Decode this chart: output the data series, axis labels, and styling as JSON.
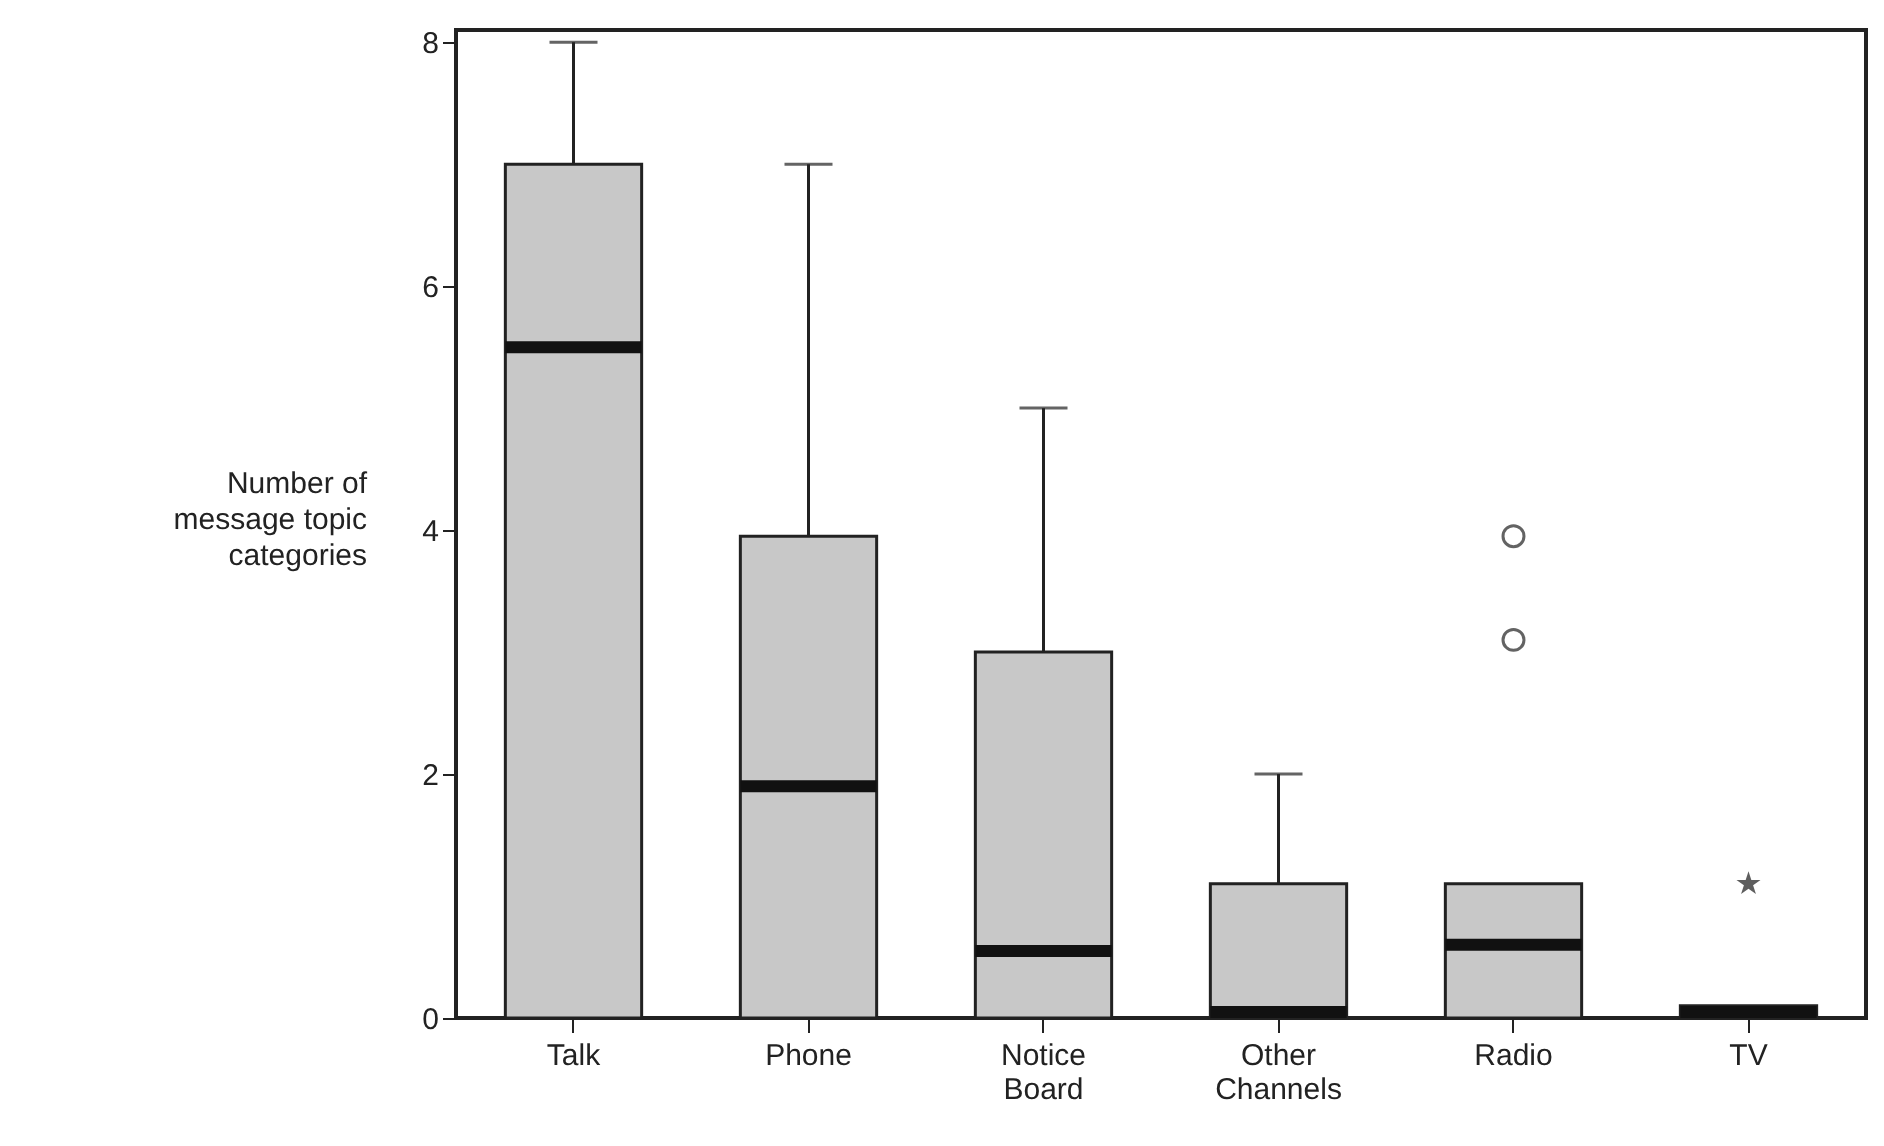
{
  "chart_data": {
    "type": "box",
    "ylabel": "Number of message topic categories",
    "categories": [
      "Talk",
      "Phone",
      "Notice Board",
      "Other Channels",
      "Radio",
      "TV"
    ],
    "ylim": [
      0,
      8.1
    ],
    "yticks": [
      0,
      2,
      4,
      6,
      8
    ],
    "series": [
      {
        "color": "#c8c8c8",
        "boxes": [
          {
            "low": 0,
            "q1": 0,
            "median": 5.5,
            "q3": 7,
            "high": 8
          },
          {
            "low": 0,
            "q1": 0,
            "median": 1.9,
            "q3": 3.95,
            "high": 7
          },
          {
            "low": 0,
            "q1": 0,
            "median": 0.55,
            "q3": 3,
            "high": 5
          },
          {
            "low": 0,
            "q1": 0,
            "median": 0.05,
            "q3": 1.1,
            "high": 2
          },
          {
            "low": 0,
            "q1": 0,
            "median": 0.6,
            "q3": 1.1,
            "high": 1.1,
            "outliers": [
              3.1,
              3.95
            ]
          },
          {
            "low": 0,
            "q1": 0,
            "median": 0.05,
            "q3": 0.1,
            "high": 0.1
          }
        ]
      },
      {
        "type": "scatter",
        "marker": "star",
        "color": "#1a1a1a",
        "x": [
          "TV"
        ],
        "values": [
          1.1
        ]
      }
    ]
  }
}
